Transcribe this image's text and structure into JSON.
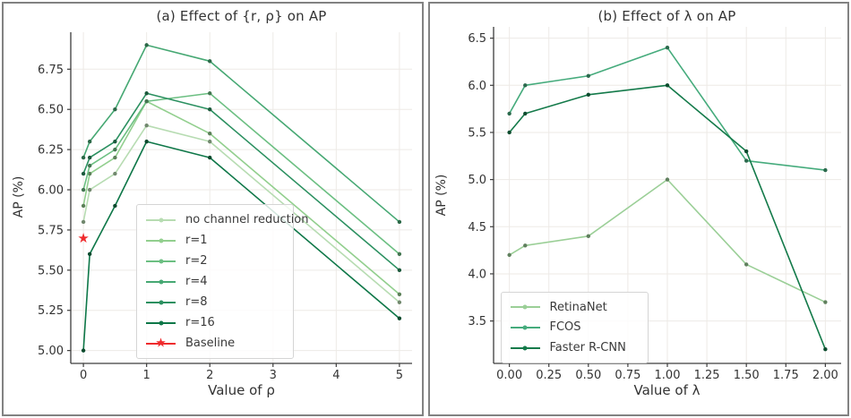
{
  "chart_data": [
    {
      "type": "line",
      "panel": "a",
      "title": "(a) Effect of {r, ρ} on AP",
      "xlabel": "Value of ρ",
      "ylabel": "AP (%)",
      "grid": true,
      "legend_position": "lower-center",
      "x": [
        0,
        0.1,
        0.5,
        1,
        2,
        5
      ],
      "xlim": [
        -0.2,
        5.2
      ],
      "ylim": [
        4.92,
        6.98
      ],
      "xticks": {
        "values": [
          0,
          1,
          2,
          3,
          4,
          5
        ],
        "labels": [
          "0",
          "1",
          "2",
          "3",
          "4",
          "5"
        ]
      },
      "yticks": {
        "values": [
          5.0,
          5.25,
          5.5,
          5.75,
          6.0,
          6.25,
          6.5,
          6.75
        ],
        "labels": [
          "5.00",
          "5.25",
          "5.50",
          "5.75",
          "6.00",
          "6.25",
          "6.50",
          "6.75"
        ]
      },
      "series": [
        {
          "name": "no channel reduction",
          "color": "#b7dcb2",
          "values": [
            5.8,
            6.0,
            6.1,
            6.4,
            6.3,
            5.3
          ]
        },
        {
          "name": "r=1",
          "color": "#92cf8e",
          "values": [
            5.9,
            6.1,
            6.2,
            6.55,
            6.35,
            5.35
          ]
        },
        {
          "name": "r=2",
          "color": "#6cbf82",
          "values": [
            6.0,
            6.15,
            6.25,
            6.55,
            6.6,
            5.6
          ]
        },
        {
          "name": "r=4",
          "color": "#46a873",
          "values": [
            6.2,
            6.3,
            6.5,
            6.9,
            6.8,
            5.8
          ]
        },
        {
          "name": "r=8",
          "color": "#2b9060",
          "values": [
            6.1,
            6.2,
            6.3,
            6.6,
            6.5,
            5.5
          ]
        },
        {
          "name": "r=16",
          "color": "#0e7748",
          "values": [
            5.0,
            5.6,
            5.9,
            6.3,
            6.2,
            5.2
          ]
        }
      ],
      "baseline": {
        "name": "Baseline",
        "color": "#ef2b2d",
        "x": 0,
        "y": 5.7,
        "marker": "star"
      }
    },
    {
      "type": "line",
      "panel": "b",
      "title": "(b) Effect of λ on AP",
      "xlabel": "Value of λ",
      "ylabel": "AP (%)",
      "grid": true,
      "legend_position": "lower-left",
      "x": [
        0,
        0.1,
        0.5,
        1.0,
        1.5,
        2.0
      ],
      "xlim": [
        -0.1,
        2.1
      ],
      "ylim": [
        3.05,
        6.62
      ],
      "xticks": {
        "values": [
          0,
          0.25,
          0.5,
          0.75,
          1,
          1.25,
          1.5,
          1.75,
          2
        ],
        "labels": [
          "0.00",
          "0.25",
          "0.50",
          "0.75",
          "1.00",
          "1.25",
          "1.50",
          "1.75",
          "2.00"
        ]
      },
      "yticks": {
        "values": [
          3.5,
          4.0,
          4.5,
          5.0,
          5.5,
          6.0,
          6.5
        ],
        "labels": [
          "3.5",
          "4.0",
          "4.5",
          "5.0",
          "5.5",
          "6.0",
          "6.5"
        ]
      },
      "series": [
        {
          "name": "RetinaNet",
          "color": "#9bcf97",
          "values": [
            4.2,
            4.3,
            4.4,
            5.0,
            4.1,
            3.7
          ]
        },
        {
          "name": "FCOS",
          "color": "#45ab7c",
          "values": [
            5.7,
            6.0,
            6.1,
            6.4,
            5.2,
            5.1
          ]
        },
        {
          "name": "Faster R-CNN",
          "color": "#147a4a",
          "values": [
            5.5,
            5.7,
            5.9,
            6.0,
            5.3,
            3.2
          ]
        }
      ]
    }
  ]
}
